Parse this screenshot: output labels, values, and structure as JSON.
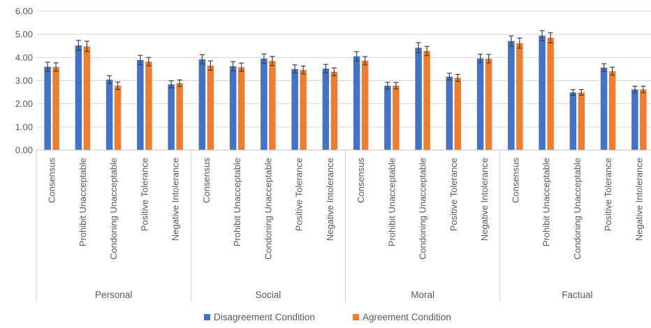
{
  "chart_data": {
    "type": "bar",
    "title": "",
    "xlabel": "",
    "ylabel": "",
    "ylim": [
      0,
      6
    ],
    "yticks": [
      "0.00",
      "1.00",
      "2.00",
      "3.00",
      "4.00",
      "5.00",
      "6.00"
    ],
    "grid": true,
    "legend_position": "bottom",
    "groups": [
      "Personal",
      "Social",
      "Moral",
      "Factual"
    ],
    "categories": [
      "Consensus",
      "Prohibit Unacceptable",
      "Condoning Unacceptable",
      "Positive Tolerance",
      "Negative Intolerance"
    ],
    "series": [
      {
        "name": "Disagreement Condition",
        "color": "#4472C4",
        "values": [
          [
            3.6,
            4.52,
            3.04,
            3.89,
            2.84
          ],
          [
            3.92,
            3.62,
            3.95,
            3.5,
            3.52
          ],
          [
            4.05,
            2.78,
            4.42,
            3.17,
            3.96
          ],
          [
            4.71,
            4.94,
            2.49,
            3.56,
            2.62
          ]
        ],
        "errors": [
          [
            0.2,
            0.22,
            0.17,
            0.2,
            0.15
          ],
          [
            0.2,
            0.2,
            0.2,
            0.18,
            0.18
          ],
          [
            0.2,
            0.15,
            0.22,
            0.15,
            0.18
          ],
          [
            0.22,
            0.22,
            0.12,
            0.17,
            0.14
          ]
        ]
      },
      {
        "name": "Agreement Condition",
        "color": "#ED7D31",
        "values": [
          [
            3.59,
            4.48,
            2.78,
            3.82,
            2.89
          ],
          [
            3.65,
            3.58,
            3.85,
            3.46,
            3.38
          ],
          [
            3.86,
            2.78,
            4.28,
            3.12,
            3.95
          ],
          [
            4.62,
            4.85,
            2.49,
            3.41,
            2.62
          ]
        ],
        "errors": [
          [
            0.18,
            0.22,
            0.16,
            0.18,
            0.14
          ],
          [
            0.2,
            0.18,
            0.2,
            0.17,
            0.17
          ],
          [
            0.18,
            0.14,
            0.2,
            0.15,
            0.18
          ],
          [
            0.22,
            0.22,
            0.12,
            0.17,
            0.14
          ]
        ]
      }
    ]
  }
}
